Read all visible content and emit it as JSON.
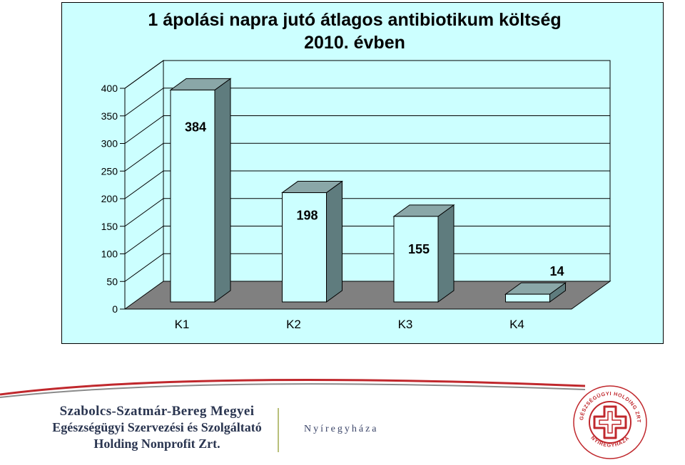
{
  "chart_data": {
    "type": "bar",
    "style": "3d-column",
    "title": "1 ápolási napra jutó átlagos antibiotikum költség",
    "subtitle": "2010. évben",
    "categories": [
      "K1",
      "K2",
      "K3",
      "K4"
    ],
    "values": [
      384,
      198,
      155,
      14
    ],
    "data_labels": [
      "384",
      "198",
      "155",
      "14"
    ],
    "ylim": [
      0,
      400
    ],
    "yticks": [
      "0",
      "50",
      "100",
      "150",
      "200",
      "250",
      "300",
      "350",
      "400"
    ],
    "grid": true,
    "legend": "none",
    "colors": {
      "background": "#ccffff",
      "bar_front": "#ccffff",
      "bar_side": "#5f7c7e",
      "bar_top": "#8aa7a8",
      "floor": "#808080",
      "grid": "#000000"
    }
  },
  "footer": {
    "org_line1": "Szabolcs-Szatmár-Bereg Megyei",
    "org_line2": "Egészségügyi Szervezési és Szolgáltató",
    "org_line3": "Holding Nonprofit Zrt.",
    "city": "Nyíregyháza",
    "logo_top_text": "EGÉSZSÉGÜGYI HOLDING ZRT.",
    "logo_bottom_text": "NYÍREGYHÁZA",
    "colors": {
      "curve": "#c0282d",
      "org_text": "#2a3550",
      "logo_red": "#c0282d"
    }
  }
}
